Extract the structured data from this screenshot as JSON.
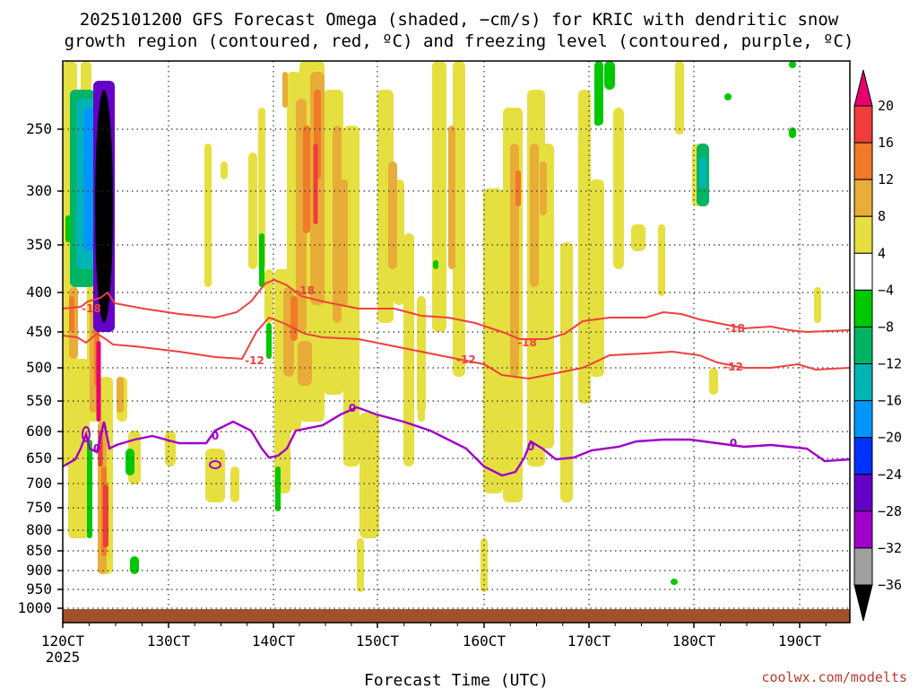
{
  "chart_data": {
    "type": "heatmap",
    "title_lines": [
      "2025101200 GFS Forecast Omega (shaded, −cm/s) for KRIC with dendritic snow",
      "growth region (contoured, red, ºC) and freezing level (contoured, purple, ºC)"
    ],
    "xlabel": "Forecast Time (UTC)",
    "x_ticks": [
      "120CT",
      "130CT",
      "140CT",
      "150CT",
      "160CT",
      "170CT",
      "180CT",
      "190CT"
    ],
    "x_subtick": "2025",
    "y_ticks": [
      250,
      300,
      350,
      400,
      450,
      500,
      550,
      600,
      650,
      700,
      750,
      800,
      850,
      900,
      950,
      1000
    ],
    "colorbar": {
      "labels": [
        "20",
        "16",
        "12",
        "8",
        "4",
        "−4",
        "−8",
        "−12",
        "−16",
        "−20",
        "−24",
        "−28",
        "−32",
        "−36"
      ],
      "colors": [
        "#e8006e",
        "#f03c3c",
        "#ef7a28",
        "#e8ac38",
        "#e6df40",
        "#ffffff",
        "#00c800",
        "#00b464",
        "#00b4b4",
        "#0096ff",
        "#0032ff",
        "#6400c8",
        "#a000c8",
        "#a0a0a0",
        "#000000"
      ]
    },
    "contours": {
      "dgz_upper_label": "-18",
      "dgz_lower_label": "-12",
      "freezing_label": "0",
      "dgz_color": "#f04040",
      "freezing_color": "#a000c8"
    },
    "ground_color": "#a0522d",
    "credit": "coolwx.com/modelts"
  }
}
